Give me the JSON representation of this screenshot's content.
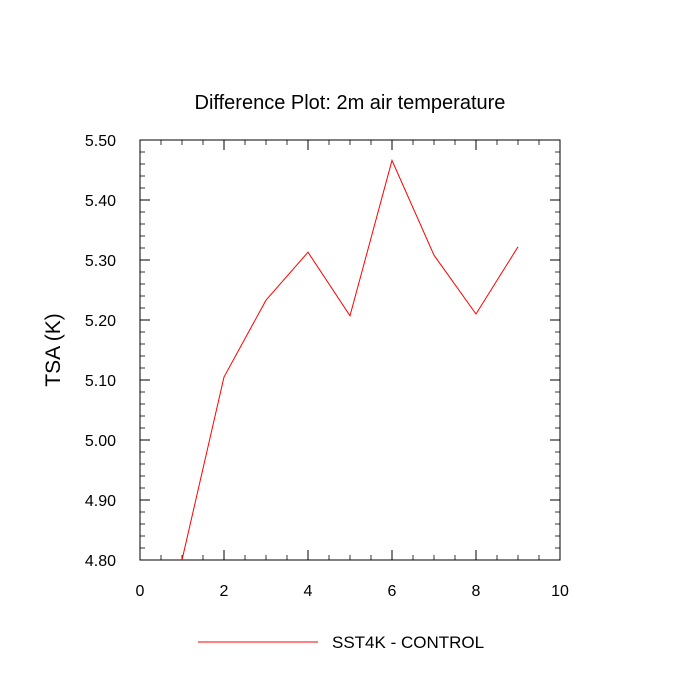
{
  "chart_data": {
    "type": "line",
    "title": "Difference Plot: 2m air temperature",
    "xlabel": "",
    "ylabel": "TSA  (K)",
    "xlim": [
      0,
      10
    ],
    "ylim": [
      4.8,
      5.5
    ],
    "xticks": [
      0,
      2,
      4,
      6,
      8,
      10
    ],
    "xtick_labels": [
      "0",
      "2",
      "4",
      "6",
      "8",
      "10"
    ],
    "yticks": [
      4.8,
      4.9,
      5.0,
      5.1,
      5.2,
      5.3,
      5.4,
      5.5
    ],
    "ytick_labels": [
      "4.80",
      "4.90",
      "5.00",
      "5.10",
      "5.20",
      "5.30",
      "5.40",
      "5.50"
    ],
    "grid": false,
    "legend_position": "bottom",
    "series": [
      {
        "name": "SST4K - CONTROL",
        "color": "#ff0000",
        "x": [
          1,
          2,
          3,
          4,
          5,
          6,
          7,
          8,
          9
        ],
        "y": [
          4.8,
          5.105,
          5.233,
          5.313,
          5.207,
          5.466,
          5.308,
          5.21,
          5.322
        ]
      }
    ]
  }
}
